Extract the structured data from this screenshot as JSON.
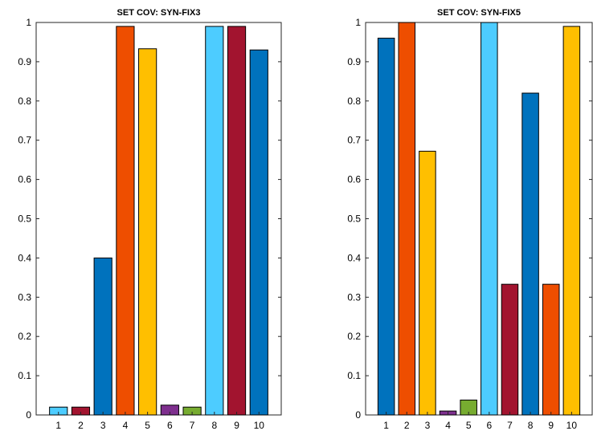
{
  "chart_data": [
    {
      "type": "bar",
      "title": "SET COV: SYN-FIX3",
      "categories": [
        "1",
        "2",
        "3",
        "4",
        "5",
        "6",
        "7",
        "8",
        "9",
        "10"
      ],
      "values": [
        0.02,
        0.02,
        0.4,
        0.99,
        0.933,
        0.025,
        0.02,
        0.99,
        0.99,
        0.93
      ],
      "colors": [
        "#4DCCFF",
        "#A2142F",
        "#0072BD",
        "#EE4E00",
        "#FFBF00",
        "#7E2F8E",
        "#77AC30",
        "#4DCCFF",
        "#A2142F",
        "#0072BD"
      ],
      "ylim": [
        0,
        1
      ],
      "yticks": [
        "0",
        "0.1",
        "0.2",
        "0.3",
        "0.4",
        "0.5",
        "0.6",
        "0.7",
        "0.8",
        "0.9",
        "1"
      ],
      "grid": false,
      "xlabel": "",
      "ylabel": ""
    },
    {
      "type": "bar",
      "title": "SET COV: SYN-FIX5",
      "categories": [
        "1",
        "2",
        "3",
        "4",
        "5",
        "6",
        "7",
        "8",
        "9",
        "10"
      ],
      "values": [
        0.96,
        1.0,
        0.672,
        0.01,
        0.038,
        1.0,
        0.333,
        0.82,
        0.333,
        0.99
      ],
      "colors": [
        "#0072BD",
        "#EE4E00",
        "#FFBF00",
        "#7E2F8E",
        "#77AC30",
        "#4DCCFF",
        "#A2142F",
        "#0072BD",
        "#EE4E00",
        "#FFBF00"
      ],
      "ylim": [
        0,
        1
      ],
      "yticks": [
        "0",
        "0.1",
        "0.2",
        "0.3",
        "0.4",
        "0.5",
        "0.6",
        "0.7",
        "0.8",
        "0.9",
        "1"
      ],
      "grid": false,
      "xlabel": "",
      "ylabel": ""
    }
  ]
}
